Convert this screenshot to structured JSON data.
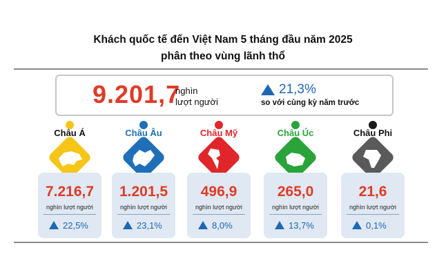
{
  "header": {
    "title_line1": "Khách quốc tế đến Việt Nam 5 tháng đầu năm 2025",
    "title_line2": "phân theo vùng lãnh thổ"
  },
  "summary": {
    "total": "9.201,7",
    "unit_line1": "nghìn",
    "unit_line2": "lượt người",
    "growth": "21,3%",
    "growth_note": "so với cùng kỳ năm trước"
  },
  "chart_data": {
    "type": "bar",
    "categories": [
      "Châu Á",
      "Châu Âu",
      "Châu Mỹ",
      "Châu Úc",
      "Châu Phi"
    ],
    "values": [
      7216.7,
      1201.5,
      496.9,
      265.0,
      21.6
    ],
    "value_labels": [
      "7.216,7",
      "1.201,5",
      "496,9",
      "265,0",
      "21,6"
    ],
    "unit": "nghìn lượt người",
    "growth_labels": [
      "22,5%",
      "23,1%",
      "8,0%",
      "13,7%",
      "0,1%"
    ],
    "total": 9201.7,
    "total_growth_pct": 21.3
  },
  "colors": {
    "value_red": "#e03b26",
    "growth_blue": "#1e67b3",
    "asia": "#f5c518",
    "europe": "#1f6fb8",
    "america": "#e0262a",
    "oceania": "#2aa33a",
    "africa": "#1a1a1a",
    "africa_tile": "#5a5a5a"
  },
  "regions": [
    {
      "icon": "asia-map-icon"
    },
    {
      "icon": "europe-map-icon"
    },
    {
      "icon": "america-map-icon"
    },
    {
      "icon": "oceania-map-icon"
    },
    {
      "icon": "africa-map-icon"
    }
  ]
}
